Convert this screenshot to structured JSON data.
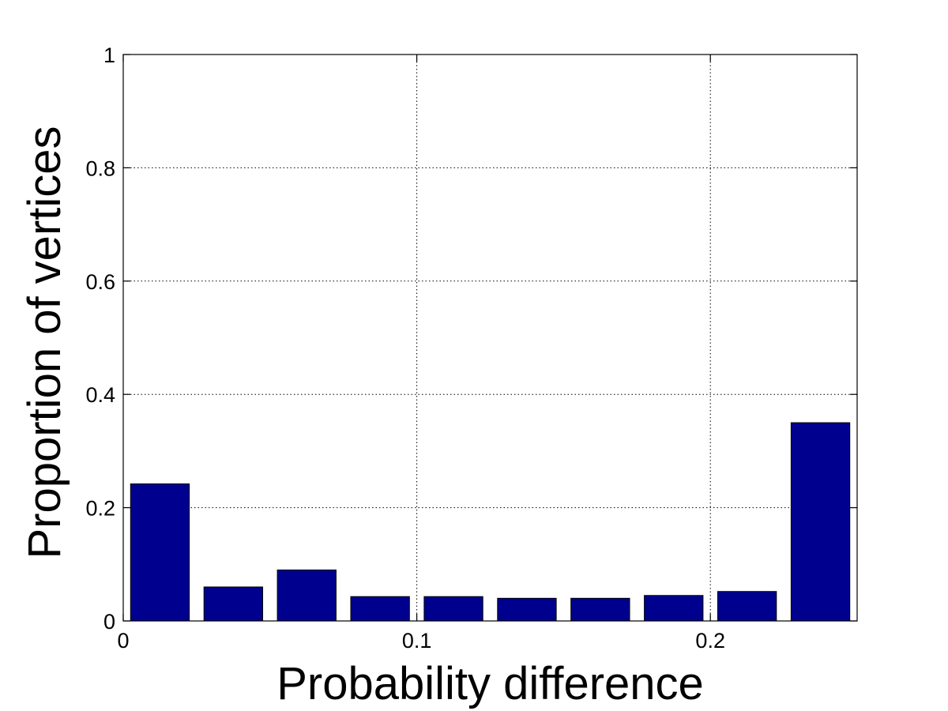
{
  "chart_data": {
    "type": "bar",
    "title": "",
    "xlabel": "Probability difference",
    "ylabel": "Proportion of vertices",
    "x": [
      0.0125,
      0.0375,
      0.0625,
      0.0875,
      0.1125,
      0.1375,
      0.1625,
      0.1875,
      0.2125,
      0.2375
    ],
    "values": [
      0.242,
      0.06,
      0.09,
      0.043,
      0.043,
      0.04,
      0.04,
      0.045,
      0.052,
      0.35
    ],
    "xlim": [
      0,
      0.25
    ],
    "ylim": [
      0,
      1
    ],
    "xticks": [
      0,
      0.1,
      0.2
    ],
    "xtick_labels": [
      "0",
      "0.1",
      "0.2"
    ],
    "yticks": [
      0,
      0.2,
      0.4,
      0.6,
      0.8,
      1
    ],
    "ytick_labels": [
      "0",
      "0.2",
      "0.4",
      "0.6",
      "0.8",
      "1"
    ],
    "grid": true,
    "bar_width_fraction": 0.8,
    "colors": {
      "bar_fill": "#00008f",
      "bar_edge": "#000000",
      "grid": "#000000",
      "background": "#ffffff"
    }
  }
}
